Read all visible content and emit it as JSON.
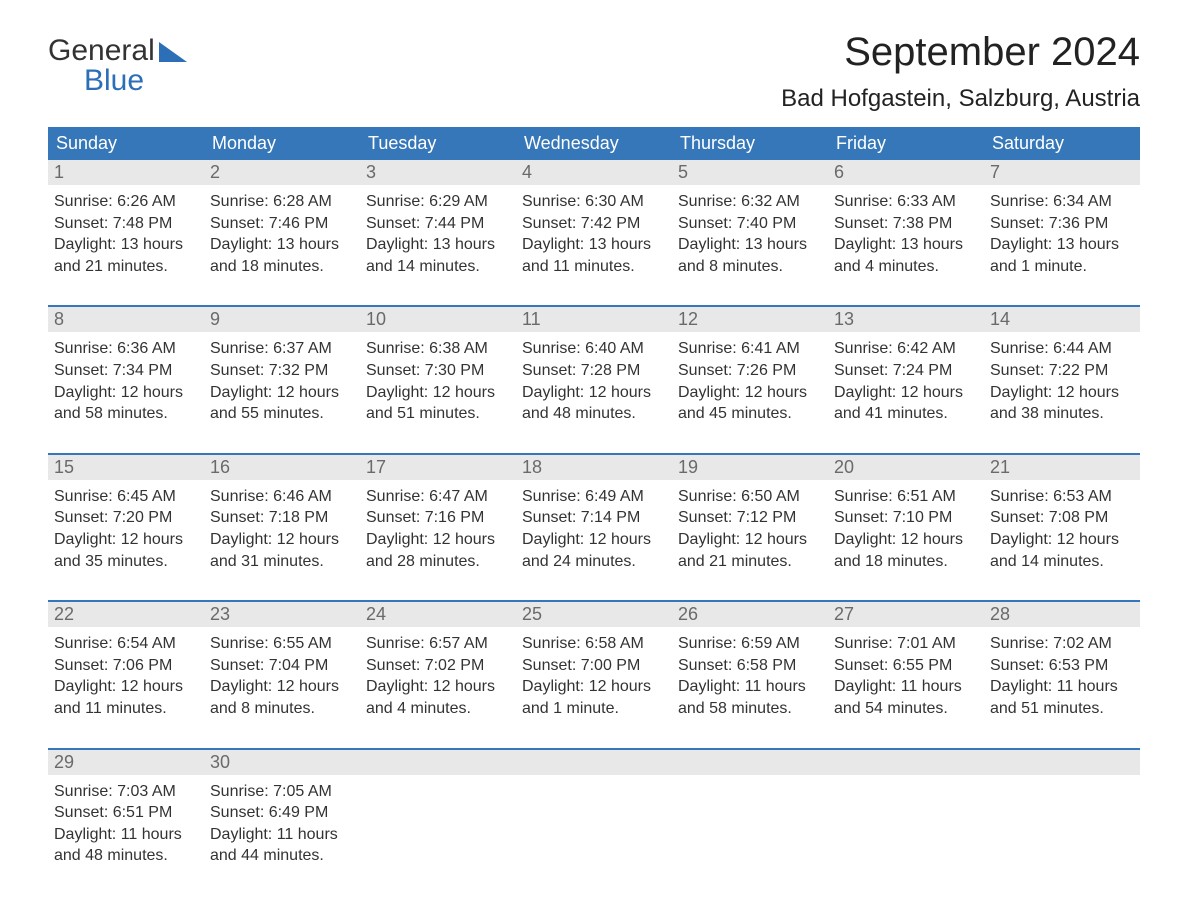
{
  "brand": {
    "name1": "General",
    "name2": "Blue"
  },
  "title": "September 2024",
  "location": "Bad Hofgastein, Salzburg, Austria",
  "colors": {
    "header_bg": "#3577b8",
    "header_text": "#ffffff",
    "daynum_bg": "#e8e8e8",
    "daynum_text": "#6a6a6a",
    "body_text": "#333333",
    "brand_blue": "#2d6fb6",
    "week_border": "#3577b8",
    "background": "#ffffff"
  },
  "typography": {
    "month_title_size_pt": 30,
    "location_size_pt": 18,
    "dayheader_size_pt": 14,
    "daynum_size_pt": 14,
    "detail_size_pt": 12,
    "font_family": "Arial"
  },
  "day_headers": [
    "Sunday",
    "Monday",
    "Tuesday",
    "Wednesday",
    "Thursday",
    "Friday",
    "Saturday"
  ],
  "weeks": [
    [
      {
        "n": "1",
        "sunrise": "Sunrise: 6:26 AM",
        "sunset": "Sunset: 7:48 PM",
        "d1": "Daylight: 13 hours",
        "d2": "and 21 minutes."
      },
      {
        "n": "2",
        "sunrise": "Sunrise: 6:28 AM",
        "sunset": "Sunset: 7:46 PM",
        "d1": "Daylight: 13 hours",
        "d2": "and 18 minutes."
      },
      {
        "n": "3",
        "sunrise": "Sunrise: 6:29 AM",
        "sunset": "Sunset: 7:44 PM",
        "d1": "Daylight: 13 hours",
        "d2": "and 14 minutes."
      },
      {
        "n": "4",
        "sunrise": "Sunrise: 6:30 AM",
        "sunset": "Sunset: 7:42 PM",
        "d1": "Daylight: 13 hours",
        "d2": "and 11 minutes."
      },
      {
        "n": "5",
        "sunrise": "Sunrise: 6:32 AM",
        "sunset": "Sunset: 7:40 PM",
        "d1": "Daylight: 13 hours",
        "d2": "and 8 minutes."
      },
      {
        "n": "6",
        "sunrise": "Sunrise: 6:33 AM",
        "sunset": "Sunset: 7:38 PM",
        "d1": "Daylight: 13 hours",
        "d2": "and 4 minutes."
      },
      {
        "n": "7",
        "sunrise": "Sunrise: 6:34 AM",
        "sunset": "Sunset: 7:36 PM",
        "d1": "Daylight: 13 hours",
        "d2": "and 1 minute."
      }
    ],
    [
      {
        "n": "8",
        "sunrise": "Sunrise: 6:36 AM",
        "sunset": "Sunset: 7:34 PM",
        "d1": "Daylight: 12 hours",
        "d2": "and 58 minutes."
      },
      {
        "n": "9",
        "sunrise": "Sunrise: 6:37 AM",
        "sunset": "Sunset: 7:32 PM",
        "d1": "Daylight: 12 hours",
        "d2": "and 55 minutes."
      },
      {
        "n": "10",
        "sunrise": "Sunrise: 6:38 AM",
        "sunset": "Sunset: 7:30 PM",
        "d1": "Daylight: 12 hours",
        "d2": "and 51 minutes."
      },
      {
        "n": "11",
        "sunrise": "Sunrise: 6:40 AM",
        "sunset": "Sunset: 7:28 PM",
        "d1": "Daylight: 12 hours",
        "d2": "and 48 minutes."
      },
      {
        "n": "12",
        "sunrise": "Sunrise: 6:41 AM",
        "sunset": "Sunset: 7:26 PM",
        "d1": "Daylight: 12 hours",
        "d2": "and 45 minutes."
      },
      {
        "n": "13",
        "sunrise": "Sunrise: 6:42 AM",
        "sunset": "Sunset: 7:24 PM",
        "d1": "Daylight: 12 hours",
        "d2": "and 41 minutes."
      },
      {
        "n": "14",
        "sunrise": "Sunrise: 6:44 AM",
        "sunset": "Sunset: 7:22 PM",
        "d1": "Daylight: 12 hours",
        "d2": "and 38 minutes."
      }
    ],
    [
      {
        "n": "15",
        "sunrise": "Sunrise: 6:45 AM",
        "sunset": "Sunset: 7:20 PM",
        "d1": "Daylight: 12 hours",
        "d2": "and 35 minutes."
      },
      {
        "n": "16",
        "sunrise": "Sunrise: 6:46 AM",
        "sunset": "Sunset: 7:18 PM",
        "d1": "Daylight: 12 hours",
        "d2": "and 31 minutes."
      },
      {
        "n": "17",
        "sunrise": "Sunrise: 6:47 AM",
        "sunset": "Sunset: 7:16 PM",
        "d1": "Daylight: 12 hours",
        "d2": "and 28 minutes."
      },
      {
        "n": "18",
        "sunrise": "Sunrise: 6:49 AM",
        "sunset": "Sunset: 7:14 PM",
        "d1": "Daylight: 12 hours",
        "d2": "and 24 minutes."
      },
      {
        "n": "19",
        "sunrise": "Sunrise: 6:50 AM",
        "sunset": "Sunset: 7:12 PM",
        "d1": "Daylight: 12 hours",
        "d2": "and 21 minutes."
      },
      {
        "n": "20",
        "sunrise": "Sunrise: 6:51 AM",
        "sunset": "Sunset: 7:10 PM",
        "d1": "Daylight: 12 hours",
        "d2": "and 18 minutes."
      },
      {
        "n": "21",
        "sunrise": "Sunrise: 6:53 AM",
        "sunset": "Sunset: 7:08 PM",
        "d1": "Daylight: 12 hours",
        "d2": "and 14 minutes."
      }
    ],
    [
      {
        "n": "22",
        "sunrise": "Sunrise: 6:54 AM",
        "sunset": "Sunset: 7:06 PM",
        "d1": "Daylight: 12 hours",
        "d2": "and 11 minutes."
      },
      {
        "n": "23",
        "sunrise": "Sunrise: 6:55 AM",
        "sunset": "Sunset: 7:04 PM",
        "d1": "Daylight: 12 hours",
        "d2": "and 8 minutes."
      },
      {
        "n": "24",
        "sunrise": "Sunrise: 6:57 AM",
        "sunset": "Sunset: 7:02 PM",
        "d1": "Daylight: 12 hours",
        "d2": "and 4 minutes."
      },
      {
        "n": "25",
        "sunrise": "Sunrise: 6:58 AM",
        "sunset": "Sunset: 7:00 PM",
        "d1": "Daylight: 12 hours",
        "d2": "and 1 minute."
      },
      {
        "n": "26",
        "sunrise": "Sunrise: 6:59 AM",
        "sunset": "Sunset: 6:58 PM",
        "d1": "Daylight: 11 hours",
        "d2": "and 58 minutes."
      },
      {
        "n": "27",
        "sunrise": "Sunrise: 7:01 AM",
        "sunset": "Sunset: 6:55 PM",
        "d1": "Daylight: 11 hours",
        "d2": "and 54 minutes."
      },
      {
        "n": "28",
        "sunrise": "Sunrise: 7:02 AM",
        "sunset": "Sunset: 6:53 PM",
        "d1": "Daylight: 11 hours",
        "d2": "and 51 minutes."
      }
    ],
    [
      {
        "n": "29",
        "sunrise": "Sunrise: 7:03 AM",
        "sunset": "Sunset: 6:51 PM",
        "d1": "Daylight: 11 hours",
        "d2": "and 48 minutes."
      },
      {
        "n": "30",
        "sunrise": "Sunrise: 7:05 AM",
        "sunset": "Sunset: 6:49 PM",
        "d1": "Daylight: 11 hours",
        "d2": "and 44 minutes."
      },
      {
        "n": "",
        "sunrise": "",
        "sunset": "",
        "d1": "",
        "d2": ""
      },
      {
        "n": "",
        "sunrise": "",
        "sunset": "",
        "d1": "",
        "d2": ""
      },
      {
        "n": "",
        "sunrise": "",
        "sunset": "",
        "d1": "",
        "d2": ""
      },
      {
        "n": "",
        "sunrise": "",
        "sunset": "",
        "d1": "",
        "d2": ""
      },
      {
        "n": "",
        "sunrise": "",
        "sunset": "",
        "d1": "",
        "d2": ""
      }
    ]
  ]
}
